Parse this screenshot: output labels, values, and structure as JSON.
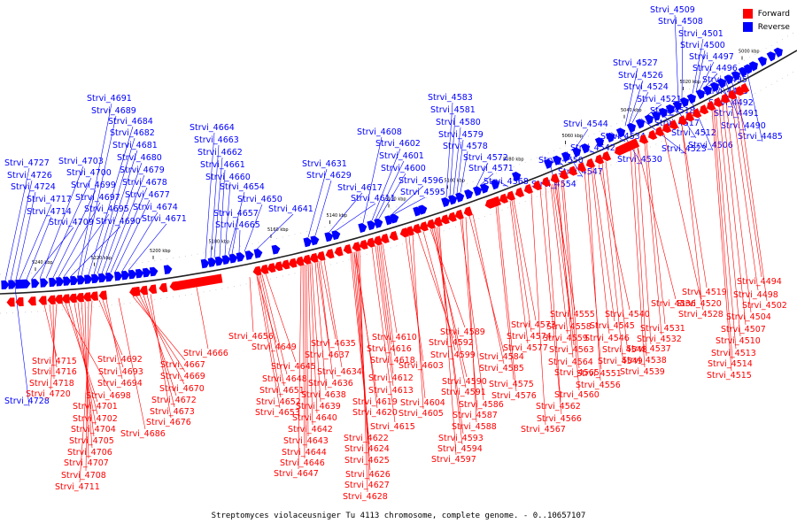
{
  "legend": {
    "items": [
      {
        "label": "Forward",
        "color": "#ff0000"
      },
      {
        "label": "Reverse",
        "color": "#0000ff"
      }
    ]
  },
  "caption": "Streptomyces violaceusniger Tu 4113 chromosome, complete genome. - 0..10657107",
  "ticks": [
    "5240 kbp",
    "5220 kbp",
    "5200 kbp",
    "5180 kbp",
    "5160 kbp",
    "5140 kbp",
    "5120 kbp",
    "5100 kbp",
    "5080 kbp",
    "5060 kbp",
    "5040 kbp",
    "5020 kbp",
    "5000 kbp"
  ],
  "reverse_genes": [
    "Strvi_4728",
    "Strvi_4727",
    "Strvi_4726",
    "Strvi_4724",
    "Strvi_4717",
    "Strvi_4714",
    "Strvi_4709",
    "Strvi_4703",
    "Strvi_4700",
    "Strvi_4699",
    "Strvi_4697",
    "Strvi_4695",
    "Strvi_4690",
    "Strvi_4691",
    "Strvi_4689",
    "Strvi_4684",
    "Strvi_4682",
    "Strvi_4681",
    "Strvi_4680",
    "Strvi_4679",
    "Strvi_4678",
    "Strvi_4677",
    "Strvi_4674",
    "Strvi_4671",
    "Strvi_4664",
    "Strvi_4663",
    "Strvi_4662",
    "Strvi_4661",
    "Strvi_4660",
    "Strvi_4654",
    "Strvi_4657",
    "Strvi_4665",
    "Strvi_4650",
    "Strvi_4641",
    "Strvi_4631",
    "Strvi_4629",
    "Strvi_4617",
    "Strvi_4611",
    "Strvi_4608",
    "Strvi_4602",
    "Strvi_4601",
    "Strvi_4600",
    "Strvi_4596",
    "Strvi_4595",
    "Strvi_4583",
    "Strvi_4581",
    "Strvi_4580",
    "Strvi_4579",
    "Strvi_4578",
    "Strvi_4572",
    "Strvi_4571",
    "Strvi_4568",
    "Strvi_4554",
    "Strvi_4550",
    "Strvi_4547",
    "Strvi_4544",
    "Strvi_4542",
    "Strvi_4534",
    "Strvi_4530",
    "Strvi_4527",
    "Strvi_4526",
    "Strvi_4524",
    "Strvi_4523",
    "Strvi_4521",
    "Strvi_4518",
    "Strvi_4517",
    "Strvi_4512",
    "Strvi_4509",
    "Strvi_4508",
    "Strvi_4506",
    "Strvi_4501",
    "Strvi_4500",
    "Strvi_4497",
    "Strvi_4496",
    "Strvi_4495",
    "Strvi_4493",
    "Strvi_4492",
    "Strvi_4491",
    "Strvi_4490",
    "Strvi_4485"
  ],
  "forward_genes": [
    "Strvi_4715",
    "Strvi_4716",
    "Strvi_4718",
    "Strvi_4720",
    "Strvi_4698",
    "Strvi_4701",
    "Strvi_4702",
    "Strvi_4704",
    "Strvi_4705",
    "Strvi_4706",
    "Strvi_4707",
    "Strvi_4708",
    "Strvi_4711",
    "Strvi_4692",
    "Strvi_4693",
    "Strvi_4694",
    "Strvi_4667",
    "Strvi_4669",
    "Strvi_4670",
    "Strvi_4672",
    "Strvi_4673",
    "Strvi_4676",
    "Strvi_4686",
    "Strvi_4666",
    "Strvi_4656",
    "Strvi_4649",
    "Strvi_4645",
    "Strvi_4648",
    "Strvi_4651",
    "Strvi_4652",
    "Strvi_4653",
    "Strvi_4635",
    "Strvi_4637",
    "Strvi_4634",
    "Strvi_4636",
    "Strvi_4638",
    "Strvi_4639",
    "Strvi_4640",
    "Strvi_4642",
    "Strvi_4643",
    "Strvi_4644",
    "Strvi_4646",
    "Strvi_4647",
    "Strvi_4610",
    "Strvi_4616",
    "Strvi_4618",
    "Strvi_4612",
    "Strvi_4613",
    "Strvi_4619",
    "Strvi_4620",
    "Strvi_4615",
    "Strvi_4622",
    "Strvi_4624",
    "Strvi_4625",
    "Strvi_4626",
    "Strvi_4627",
    "Strvi_4628",
    "Strvi_4603",
    "Strvi_4604",
    "Strvi_4605",
    "Strvi_4599",
    "Strvi_4592",
    "Strvi_4589",
    "Strvi_4590",
    "Strvi_4591",
    "Strvi_4593",
    "Strvi_4594",
    "Strvi_4597",
    "Strvi_4584",
    "Strvi_4585",
    "Strvi_4586",
    "Strvi_4587",
    "Strvi_4588",
    "Strvi_4573",
    "Strvi_4574",
    "Strvi_4577",
    "Strvi_4575",
    "Strvi_4576",
    "Strvi_4555",
    "Strvi_4558",
    "Strvi_4559",
    "Strvi_4563",
    "Strvi_4564",
    "Strvi_4565",
    "Strvi_4560",
    "Strvi_4562",
    "Strvi_4566",
    "Strvi_4567",
    "Strvi_4540",
    "Strvi_4545",
    "Strvi_4546",
    "Strvi_4548",
    "Strvi_4549",
    "Strvi_4551",
    "Strvi_4556",
    "Strvi_4536",
    "Strvi_4528",
    "Strvi_4531",
    "Strvi_4532",
    "Strvi_4537",
    "Strvi_4538",
    "Strvi_4539",
    "Strvi_4519",
    "Strvi_4520",
    "Strvi_4494",
    "Strvi_4498",
    "Strvi_4502",
    "Strvi_4504",
    "Strvi_4507",
    "Strvi_4510",
    "Strvi_4513",
    "Strvi_4514",
    "Strvi_4515"
  ]
}
